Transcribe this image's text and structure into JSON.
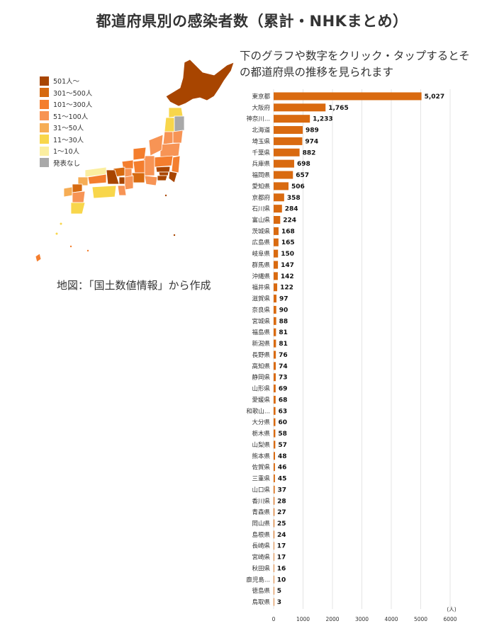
{
  "page": {
    "title": "都道府県別の感染者数（累計・NHKまとめ）",
    "instruction": "下のグラフや数字をクリック・タップするとその都道府県の推移を見られます",
    "map_caption": "地図：「国土数値情報」から作成"
  },
  "legend": [
    {
      "label": "501人～",
      "color": "#a84500"
    },
    {
      "label": "301～500人",
      "color": "#d66a10"
    },
    {
      "label": "101～300人",
      "color": "#f47e2e"
    },
    {
      "label": "51～100人",
      "color": "#f79455"
    },
    {
      "label": "31～50人",
      "color": "#f6ad55"
    },
    {
      "label": "11～30人",
      "color": "#f8d64b"
    },
    {
      "label": "1～10人",
      "color": "#fbeea0"
    },
    {
      "label": "発表なし",
      "color": "#a9a9a9"
    }
  ],
  "chart_data": {
    "type": "bar",
    "orientation": "horizontal",
    "bar_color": "#d96a10",
    "categories": [
      "東京都",
      "大阪府",
      "神奈川...",
      "北海道",
      "埼玉県",
      "千葉県",
      "兵庫県",
      "福岡県",
      "愛知県",
      "京都府",
      "石川県",
      "富山県",
      "茨城県",
      "広島県",
      "岐阜県",
      "群馬県",
      "沖縄県",
      "福井県",
      "滋賀県",
      "奈良県",
      "宮城県",
      "福島県",
      "新潟県",
      "長野県",
      "高知県",
      "静岡県",
      "山形県",
      "愛媛県",
      "和歌山...",
      "大分県",
      "栃木県",
      "山梨県",
      "熊本県",
      "佐賀県",
      "三重県",
      "山口県",
      "香川県",
      "青森県",
      "岡山県",
      "島根県",
      "長崎県",
      "宮崎県",
      "秋田県",
      "鹿児島...",
      "徳島県",
      "鳥取県"
    ],
    "values": [
      5027,
      1765,
      1233,
      989,
      974,
      882,
      698,
      657,
      506,
      358,
      284,
      224,
      168,
      165,
      150,
      147,
      142,
      122,
      97,
      90,
      88,
      81,
      81,
      76,
      74,
      73,
      69,
      68,
      63,
      60,
      58,
      57,
      48,
      46,
      45,
      37,
      28,
      27,
      25,
      24,
      17,
      17,
      16,
      10,
      5,
      3
    ],
    "value_labels": [
      "5,027",
      "1,765",
      "1,233",
      "989",
      "974",
      "882",
      "698",
      "657",
      "506",
      "358",
      "284",
      "224",
      "168",
      "165",
      "150",
      "147",
      "142",
      "122",
      "97",
      "90",
      "88",
      "81",
      "81",
      "76",
      "74",
      "73",
      "69",
      "68",
      "63",
      "60",
      "58",
      "57",
      "48",
      "46",
      "45",
      "37",
      "28",
      "27",
      "25",
      "24",
      "17",
      "17",
      "16",
      "10",
      "5",
      "3"
    ],
    "xlim": [
      0,
      6000
    ],
    "ticks": [
      "0",
      "1000",
      "2000",
      "3000",
      "4000",
      "5000",
      "6000"
    ],
    "unit": "(人)",
    "grid": true
  }
}
